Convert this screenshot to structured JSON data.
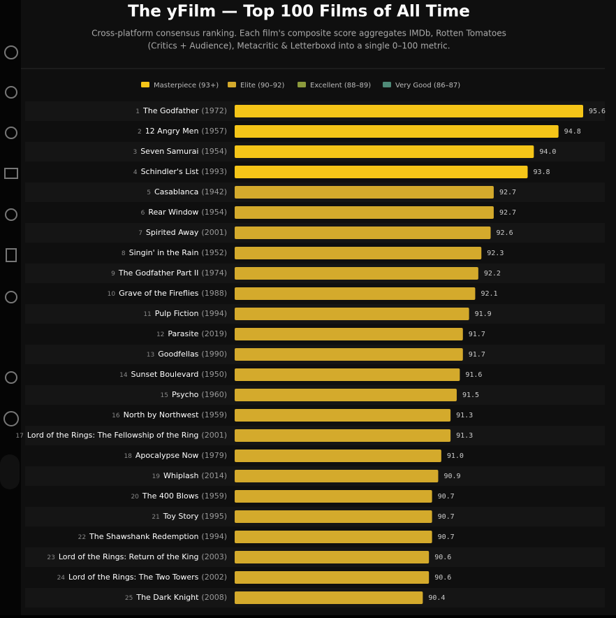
{
  "chart_data": {
    "type": "bar",
    "orientation": "horizontal",
    "title": "The yFilm — Top 100 Films of All Time",
    "subtitle": [
      "Cross-platform consensus ranking. Each film's composite score aggregates IMDb, Rotten Tomatoes",
      "(Critics + Audience), Metacritic & Letterboxd into a single 0–100 metric."
    ],
    "legend": [
      {
        "name": "Masterpiece (93+)",
        "color": "#f5c518"
      },
      {
        "name": "Elite (90–92)",
        "color": "#d4aa2c"
      },
      {
        "name": "Excellent (88–89)",
        "color": "#8c9a3c"
      },
      {
        "name": "Very Good (86–87)",
        "color": "#4f8a78"
      }
    ],
    "ranks": [
      "1",
      "2",
      "3",
      "4",
      "5",
      "6",
      "7",
      "8",
      "9",
      "10",
      "11",
      "12",
      "13",
      "14",
      "15",
      "16",
      "17",
      "18",
      "19",
      "20",
      "21",
      "22",
      "23",
      "24",
      "25"
    ],
    "categories": [
      "The Godfather",
      "12 Angry Men",
      "Seven Samurai",
      "Schindler's List",
      "Casablanca",
      "Rear Window",
      "Spirited Away",
      "Singin' in the Rain",
      "The Godfather Part II",
      "Grave of the Fireflies",
      "Pulp Fiction",
      "Parasite",
      "Goodfellas",
      "Sunset Boulevard",
      "Psycho",
      "North by Northwest",
      "Lord of the Rings: The Fellowship of the Ring",
      "Apocalypse Now",
      "Whiplash",
      "The 400 Blows",
      "Toy Story",
      "The Shawshank Redemption",
      "Lord of the Rings: Return of the King",
      "Lord of the Rings: The Two Towers",
      "The Dark Knight"
    ],
    "years": [
      "(1972)",
      "(1957)",
      "(1954)",
      "(1993)",
      "(1942)",
      "(1954)",
      "(2001)",
      "(1952)",
      "(1974)",
      "(1988)",
      "(1994)",
      "(2019)",
      "(1990)",
      "(1950)",
      "(1960)",
      "(1959)",
      "(2001)",
      "(1979)",
      "(2014)",
      "(1959)",
      "(1995)",
      "(1994)",
      "(2003)",
      "(2002)",
      "(2008)"
    ],
    "values": [
      95.6,
      94.8,
      94.0,
      93.8,
      92.7,
      92.7,
      92.6,
      92.3,
      92.2,
      92.1,
      91.9,
      91.7,
      91.7,
      91.6,
      91.5,
      91.3,
      91.3,
      91.0,
      90.9,
      90.7,
      90.7,
      90.7,
      90.6,
      90.6,
      90.4
    ],
    "value_labels": [
      "95.6",
      "94.8",
      "94.0",
      "93.8",
      "92.7",
      "92.7",
      "92.6",
      "92.3",
      "92.2",
      "92.1",
      "91.9",
      "91.7",
      "91.7",
      "91.6",
      "91.5",
      "91.3",
      "91.3",
      "91.0",
      "90.9",
      "90.7",
      "90.7",
      "90.7",
      "90.6",
      "90.6",
      "90.4"
    ],
    "tiers": [
      0,
      0,
      0,
      0,
      1,
      1,
      1,
      1,
      1,
      1,
      1,
      1,
      1,
      1,
      1,
      1,
      1,
      1,
      1,
      1,
      1,
      1,
      1,
      1,
      1
    ],
    "xlim": [
      84.3,
      95.6
    ]
  }
}
